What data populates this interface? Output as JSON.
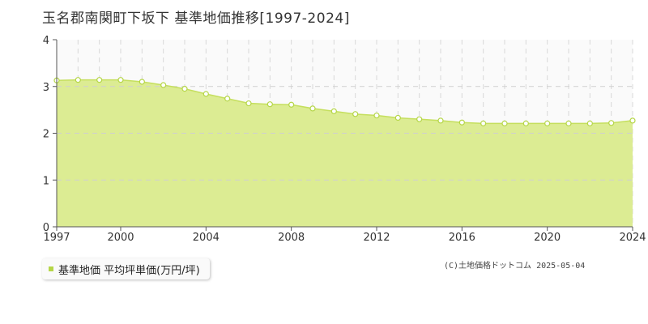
{
  "chart_data": {
    "type": "area",
    "title": "玉名郡南関町下坂下 基準地価推移[1997-2024]",
    "x": [
      1997,
      1998,
      1999,
      2000,
      2001,
      2002,
      2003,
      2004,
      2005,
      2006,
      2007,
      2008,
      2009,
      2010,
      2011,
      2012,
      2013,
      2014,
      2015,
      2016,
      2017,
      2018,
      2019,
      2020,
      2021,
      2022,
      2023,
      2024
    ],
    "series": [
      {
        "name": "基準地価 平均坪単価(万円/坪)",
        "values": [
          3.13,
          3.14,
          3.14,
          3.14,
          3.1,
          3.03,
          2.95,
          2.84,
          2.74,
          2.64,
          2.62,
          2.61,
          2.53,
          2.47,
          2.41,
          2.38,
          2.33,
          2.3,
          2.27,
          2.23,
          2.21,
          2.21,
          2.21,
          2.21,
          2.21,
          2.21,
          2.22,
          2.27
        ]
      }
    ],
    "x_tick_labels": [
      "1997",
      "2000",
      "2004",
      "2008",
      "2012",
      "2016",
      "2020",
      "2024"
    ],
    "y_tick_labels": [
      "0",
      "1",
      "2",
      "3",
      "4"
    ],
    "xlim": [
      1997,
      2024
    ],
    "ylim": [
      0,
      4
    ],
    "grid": true,
    "legend_position": "bottom-left",
    "colors": {
      "fill": "#dcec93",
      "line": "#c5df5e",
      "marker_stroke": "#b5d647",
      "legend_marker": "#b5d647"
    }
  },
  "credit": "(C)土地価格ドットコム 2025-05-04"
}
